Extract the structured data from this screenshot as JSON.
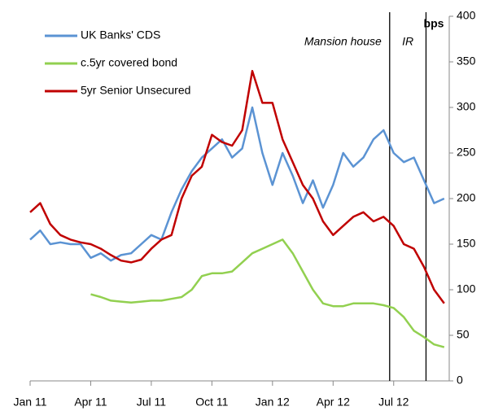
{
  "chart_data": {
    "type": "line",
    "legend": "top-left",
    "annotations": [
      "Mansion house",
      "IR"
    ],
    "y_unit_label": "bps",
    "vlines": [
      17.8,
      19.6
    ],
    "x": [
      0,
      0.5,
      1,
      1.5,
      2,
      2.5,
      3,
      3.5,
      4,
      4.5,
      5,
      5.5,
      6,
      6.5,
      7,
      7.5,
      8,
      8.5,
      9,
      9.5,
      10,
      10.5,
      11,
      11.5,
      12,
      12.5,
      13,
      13.5,
      14,
      14.5,
      15,
      15.5,
      16,
      16.5,
      17,
      17.5,
      18,
      18.5,
      19,
      19.5,
      20,
      20.5
    ],
    "xlim": [
      0,
      20.75
    ],
    "xticks": [
      {
        "value": 0,
        "label": "Jan 11"
      },
      {
        "value": 3,
        "label": "Apr 11"
      },
      {
        "value": 6,
        "label": "Jul 11"
      },
      {
        "value": 9,
        "label": "Oct 11"
      },
      {
        "value": 12,
        "label": "Jan 12"
      },
      {
        "value": 15,
        "label": "Apr 12"
      },
      {
        "value": 18,
        "label": "Jul 12"
      }
    ],
    "ylim": [
      0,
      400
    ],
    "yticks": [
      0,
      50,
      100,
      150,
      200,
      250,
      300,
      350,
      400
    ],
    "series": [
      {
        "name": "UK Banks' CDS",
        "color": "#5b93d3",
        "values": [
          155,
          165,
          150,
          152,
          150,
          150,
          135,
          140,
          132,
          138,
          140,
          150,
          160,
          155,
          185,
          210,
          230,
          245,
          255,
          265,
          245,
          255,
          300,
          250,
          215,
          250,
          225,
          195,
          220,
          190,
          215,
          250,
          235,
          245,
          265,
          275,
          250,
          240,
          245,
          220,
          195,
          200
        ]
      },
      {
        "name": "c.5yr covered bond",
        "color": "#92d050",
        "values": [
          null,
          null,
          null,
          null,
          null,
          null,
          95,
          92,
          88,
          87,
          86,
          87,
          88,
          88,
          90,
          92,
          100,
          115,
          118,
          118,
          120,
          130,
          140,
          145,
          150,
          155,
          140,
          120,
          100,
          85,
          82,
          82,
          85,
          85,
          85,
          83,
          80,
          70,
          55,
          48,
          40,
          37
        ]
      },
      {
        "name": "5yr Senior Unsecured",
        "color": "#c00000",
        "values": [
          185,
          195,
          172,
          160,
          155,
          152,
          150,
          145,
          138,
          132,
          130,
          133,
          145,
          155,
          160,
          200,
          225,
          235,
          270,
          262,
          258,
          275,
          340,
          305,
          305,
          265,
          240,
          215,
          200,
          175,
          160,
          170,
          180,
          185,
          175,
          180,
          170,
          150,
          145,
          125,
          100,
          85
        ]
      }
    ]
  }
}
